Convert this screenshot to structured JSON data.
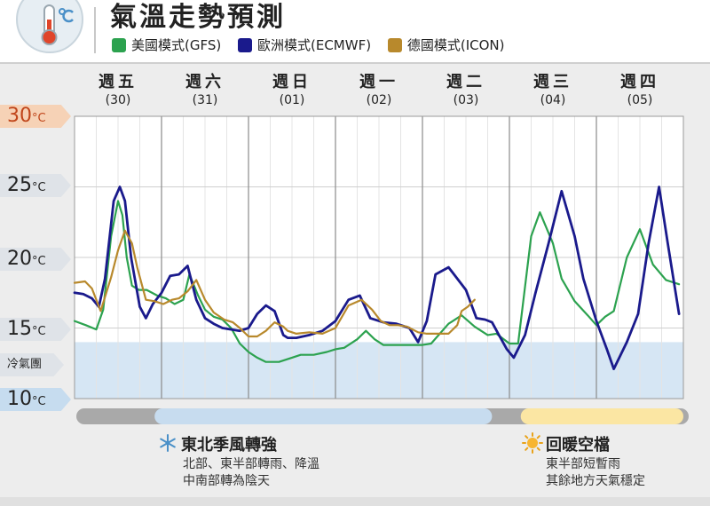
{
  "header": {
    "title": "氣溫走勢預測",
    "legend": [
      {
        "label": "美國模式(GFS)",
        "color": "#2ca24f"
      },
      {
        "label": "歐洲模式(ECMWF)",
        "color": "#1a1a8c"
      },
      {
        "label": "德國模式(ICON)",
        "color": "#b8892c"
      }
    ]
  },
  "days": [
    {
      "weekday": "週五",
      "date": "(30)"
    },
    {
      "weekday": "週六",
      "date": "(31)"
    },
    {
      "weekday": "週日",
      "date": "(01)"
    },
    {
      "weekday": "週一",
      "date": "(02)"
    },
    {
      "weekday": "週二",
      "date": "(03)"
    },
    {
      "weekday": "週三",
      "date": "(04)"
    },
    {
      "weekday": "週四",
      "date": "(05)"
    }
  ],
  "y_ticks": [
    {
      "value": 30,
      "label": "30",
      "unit": "°C",
      "bg": "#f6d2b6"
    },
    {
      "value": 25,
      "label": "25",
      "unit": "°C",
      "bg": "#dfe3e8"
    },
    {
      "value": 20,
      "label": "20",
      "unit": "°C",
      "bg": "#dfe3e8"
    },
    {
      "value": 15,
      "label": "15",
      "unit": "°C",
      "bg": "#dfe3e8"
    },
    {
      "value": 10,
      "label": "10",
      "unit": "°C",
      "bg": "#c6dcef"
    }
  ],
  "cold_label": "冷氣團",
  "chart_data": {
    "type": "line",
    "x_unit": "day index (0 = 週五(30))",
    "ylim": [
      10,
      30
    ],
    "cold_air_threshold": 14,
    "grid": true,
    "series": [
      {
        "name": "美國模式(GFS)",
        "color": "#2ca24f",
        "x": [
          0.0,
          0.13,
          0.25,
          0.33,
          0.42,
          0.5,
          0.55,
          0.6,
          0.66,
          0.74,
          0.83,
          0.95,
          1.05,
          1.15,
          1.25,
          1.32,
          1.42,
          1.5,
          1.6,
          1.7,
          1.8,
          1.9,
          2.0,
          2.1,
          2.2,
          2.35,
          2.5,
          2.6,
          2.75,
          2.9,
          3.0,
          3.1,
          3.25,
          3.35,
          3.45,
          3.55,
          3.7,
          3.85,
          4.0,
          4.1,
          4.3,
          4.45,
          4.6,
          4.75,
          4.85,
          5.0,
          5.1,
          5.25,
          5.35,
          5.5,
          5.6,
          5.75,
          5.9,
          6.0,
          6.1,
          6.2,
          6.35,
          6.5,
          6.65,
          6.8,
          6.95
        ],
        "values": [
          15.5,
          15.2,
          14.9,
          16.3,
          21.5,
          24.0,
          23.0,
          20.0,
          18.0,
          17.7,
          17.7,
          17.3,
          17.1,
          16.7,
          17.0,
          18.8,
          17.3,
          16.3,
          15.8,
          15.6,
          15.0,
          13.9,
          13.3,
          12.9,
          12.6,
          12.6,
          12.9,
          13.1,
          13.1,
          13.3,
          13.5,
          13.6,
          14.2,
          14.8,
          14.2,
          13.8,
          13.8,
          13.8,
          13.8,
          13.9,
          15.3,
          15.9,
          15.1,
          14.5,
          14.6,
          13.9,
          13.9,
          21.5,
          23.2,
          21.0,
          18.5,
          16.9,
          15.9,
          15.2,
          15.8,
          16.2,
          20.0,
          22.0,
          19.5,
          18.4,
          18.1
        ]
      },
      {
        "name": "歐洲模式(ECMWF)",
        "color": "#1a1a8c",
        "x": [
          0.0,
          0.1,
          0.2,
          0.28,
          0.35,
          0.45,
          0.52,
          0.58,
          0.65,
          0.75,
          0.82,
          0.9,
          1.0,
          1.1,
          1.2,
          1.3,
          1.4,
          1.5,
          1.6,
          1.7,
          1.8,
          1.9,
          2.0,
          2.1,
          2.2,
          2.3,
          2.4,
          2.45,
          2.55,
          2.7,
          2.85,
          3.0,
          3.15,
          3.28,
          3.4,
          3.55,
          3.7,
          3.85,
          3.95,
          4.05,
          4.15,
          4.3,
          4.5,
          4.62,
          4.72,
          4.8,
          4.88,
          4.97,
          5.05,
          5.18,
          5.3,
          5.45,
          5.6,
          5.75,
          5.85,
          6.0,
          6.12,
          6.2,
          6.35,
          6.48,
          6.6,
          6.72,
          6.82,
          6.95
        ],
        "values": [
          17.5,
          17.4,
          17.1,
          16.5,
          18.5,
          24.0,
          25.0,
          24.0,
          20.0,
          16.5,
          15.7,
          16.7,
          17.5,
          18.7,
          18.8,
          19.4,
          17.0,
          15.7,
          15.3,
          15.0,
          14.9,
          14.8,
          15.0,
          16.0,
          16.6,
          16.2,
          14.5,
          14.3,
          14.3,
          14.5,
          14.8,
          15.5,
          17.0,
          17.3,
          15.7,
          15.4,
          15.3,
          15.0,
          14.0,
          15.5,
          18.8,
          19.3,
          17.7,
          15.7,
          15.6,
          15.4,
          14.5,
          13.5,
          12.9,
          14.5,
          17.5,
          21.0,
          24.7,
          21.5,
          18.5,
          15.5,
          13.5,
          12.1,
          14.0,
          16.0,
          21.0,
          25.0,
          21.0,
          16.0
        ]
      },
      {
        "name": "德國模式(ICON)",
        "color": "#b8892c",
        "x": [
          0.0,
          0.12,
          0.2,
          0.3,
          0.42,
          0.5,
          0.58,
          0.66,
          0.72,
          0.82,
          0.92,
          1.02,
          1.12,
          1.2,
          1.3,
          1.4,
          1.5,
          1.6,
          1.72,
          1.82,
          1.9,
          2.0,
          2.1,
          2.2,
          2.3,
          2.4,
          2.45,
          2.55,
          2.7,
          2.85,
          3.0,
          3.15,
          3.3,
          3.42,
          3.52,
          3.62,
          3.72,
          3.82,
          3.95,
          4.05,
          4.15,
          4.3,
          4.4,
          4.45,
          4.52,
          4.6
        ],
        "values": [
          18.2,
          18.3,
          17.8,
          16.2,
          18.6,
          20.5,
          21.9,
          21.0,
          19.3,
          17.0,
          16.9,
          16.7,
          17.0,
          17.1,
          17.6,
          18.4,
          17.0,
          16.1,
          15.6,
          15.4,
          15.0,
          14.4,
          14.4,
          14.8,
          15.4,
          15.1,
          14.8,
          14.6,
          14.7,
          14.6,
          15.0,
          16.6,
          17.0,
          16.3,
          15.5,
          15.2,
          15.2,
          15.1,
          14.7,
          14.6,
          14.6,
          14.6,
          15.2,
          16.2,
          16.5,
          17.0
        ]
      }
    ]
  },
  "timeline": {
    "segments": [
      {
        "from": 0.0,
        "to": 7.0,
        "color": "#a9a9a9"
      },
      {
        "from": 0.92,
        "to": 4.8,
        "color": "#c7dcef"
      },
      {
        "from": 5.13,
        "to": 7.0,
        "color": "#fbe6a3"
      }
    ]
  },
  "events": [
    {
      "icon": "snowflake-icon",
      "title": "東北季風轉強",
      "lines": [
        "北部、東半部轉雨、降溫",
        "中南部轉為陰天"
      ]
    },
    {
      "icon": "sun-icon",
      "title": "回暖空檔",
      "lines": [
        "東半部短暫雨",
        "其餘地方天氣穩定"
      ]
    }
  ]
}
